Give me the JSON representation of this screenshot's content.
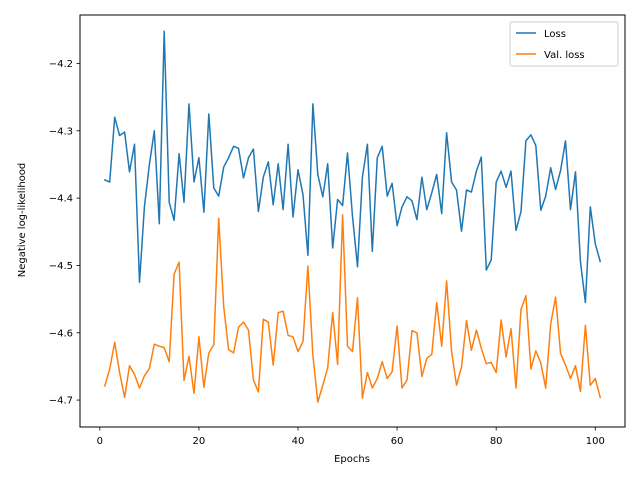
{
  "chart_data": {
    "type": "line",
    "xlabel": "Epochs",
    "ylabel": "Negative log-likelihood",
    "xlim": [
      -4,
      106
    ],
    "ylim": [
      -4.74,
      -4.128
    ],
    "xticks": [
      0,
      20,
      40,
      60,
      80,
      100
    ],
    "yticks": [
      -4.7,
      -4.6,
      -4.5,
      -4.4,
      -4.3,
      -4.2
    ],
    "ytick_labels": [
      "−4.7",
      "−4.6",
      "−4.5",
      "−4.4",
      "−4.3",
      "−4.2"
    ],
    "grid": false,
    "legend_position": "top-right",
    "x": [
      1,
      2,
      3,
      4,
      5,
      6,
      7,
      8,
      9,
      10,
      11,
      12,
      13,
      14,
      15,
      16,
      17,
      18,
      19,
      20,
      21,
      22,
      23,
      24,
      25,
      26,
      27,
      28,
      29,
      30,
      31,
      32,
      33,
      34,
      35,
      36,
      37,
      38,
      39,
      40,
      41,
      42,
      43,
      44,
      45,
      46,
      47,
      48,
      49,
      50,
      51,
      52,
      53,
      54,
      55,
      56,
      57,
      58,
      59,
      60,
      61,
      62,
      63,
      64,
      65,
      66,
      67,
      68,
      69,
      70,
      71,
      72,
      73,
      74,
      75,
      76,
      77,
      78,
      79,
      80,
      81,
      82,
      83,
      84,
      85,
      86,
      87,
      88,
      89,
      90,
      91,
      92,
      93,
      94,
      95,
      96,
      97,
      98,
      99,
      100,
      101
    ],
    "series": [
      {
        "name": "Loss",
        "color": "#1f77b4",
        "values": [
          -4.373,
          -4.376,
          -4.28,
          -4.307,
          -4.302,
          -4.361,
          -4.32,
          -4.525,
          -4.413,
          -4.35,
          -4.3,
          -4.438,
          -4.152,
          -4.406,
          -4.433,
          -4.334,
          -4.406,
          -4.26,
          -4.376,
          -4.34,
          -4.421,
          -4.275,
          -4.385,
          -4.397,
          -4.354,
          -4.34,
          -4.323,
          -4.326,
          -4.37,
          -4.34,
          -4.327,
          -4.42,
          -4.369,
          -4.346,
          -4.41,
          -4.349,
          -4.417,
          -4.32,
          -4.428,
          -4.358,
          -4.395,
          -4.485,
          -4.26,
          -4.365,
          -4.398,
          -4.349,
          -4.474,
          -4.402,
          -4.411,
          -4.333,
          -4.427,
          -4.502,
          -4.369,
          -4.32,
          -4.479,
          -4.34,
          -4.323,
          -4.397,
          -4.378,
          -4.441,
          -4.413,
          -4.398,
          -4.404,
          -4.432,
          -4.369,
          -4.417,
          -4.392,
          -4.365,
          -4.423,
          -4.303,
          -4.376,
          -4.388,
          -4.449,
          -4.388,
          -4.391,
          -4.36,
          -4.339,
          -4.507,
          -4.492,
          -4.376,
          -4.36,
          -4.384,
          -4.36,
          -4.448,
          -4.42,
          -4.315,
          -4.306,
          -4.322,
          -4.418,
          -4.397,
          -4.355,
          -4.387,
          -4.359,
          -4.315,
          -4.417,
          -4.361,
          -4.494,
          -4.555,
          -4.413,
          -4.468,
          -4.494
        ]
      },
      {
        "name": "Val. loss",
        "color": "#ff7f0e",
        "values": [
          -4.679,
          -4.654,
          -4.614,
          -4.659,
          -4.696,
          -4.649,
          -4.662,
          -4.682,
          -4.664,
          -4.653,
          -4.617,
          -4.62,
          -4.622,
          -4.643,
          -4.513,
          -4.495,
          -4.671,
          -4.635,
          -4.69,
          -4.606,
          -4.681,
          -4.63,
          -4.618,
          -4.43,
          -4.561,
          -4.625,
          -4.63,
          -4.592,
          -4.584,
          -4.596,
          -4.67,
          -4.688,
          -4.58,
          -4.584,
          -4.648,
          -4.57,
          -4.568,
          -4.604,
          -4.606,
          -4.628,
          -4.613,
          -4.501,
          -4.634,
          -4.703,
          -4.678,
          -4.652,
          -4.57,
          -4.647,
          -4.425,
          -4.62,
          -4.628,
          -4.548,
          -4.697,
          -4.659,
          -4.682,
          -4.668,
          -4.643,
          -4.668,
          -4.658,
          -4.59,
          -4.682,
          -4.67,
          -4.597,
          -4.6,
          -4.665,
          -4.638,
          -4.632,
          -4.555,
          -4.62,
          -4.523,
          -4.628,
          -4.678,
          -4.651,
          -4.582,
          -4.626,
          -4.596,
          -4.623,
          -4.646,
          -4.644,
          -4.659,
          -4.581,
          -4.636,
          -4.594,
          -4.682,
          -4.565,
          -4.545,
          -4.654,
          -4.627,
          -4.645,
          -4.682,
          -4.587,
          -4.547,
          -4.631,
          -4.648,
          -4.668,
          -4.649,
          -4.687,
          -4.589,
          -4.678,
          -4.668,
          -4.696
        ]
      }
    ]
  }
}
